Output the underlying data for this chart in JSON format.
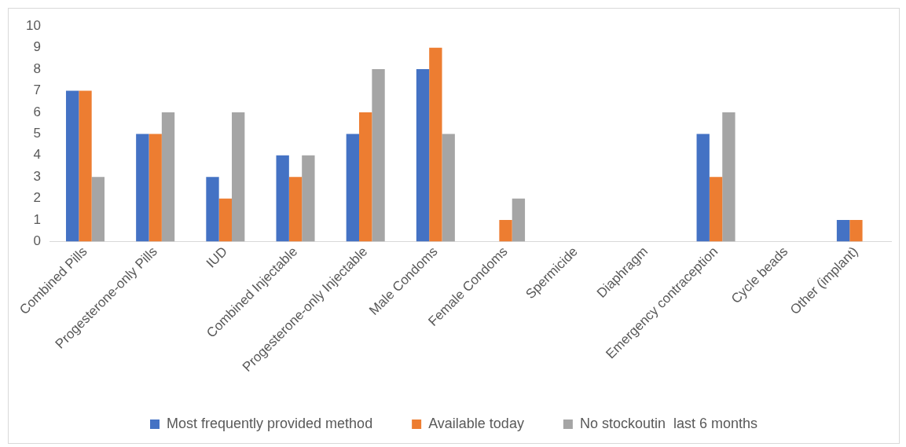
{
  "chart_data": {
    "type": "bar",
    "categories": [
      "Combined Pills",
      "Progesterone-only Pills",
      "IUD",
      "Combined Injectable",
      "Progesterone-only Injectable",
      "Male Condoms",
      "Female Condoms",
      "Spermicide",
      "Diaphragm",
      "Emergency contraception",
      "Cycle beads",
      "Other (implant)"
    ],
    "series": [
      {
        "name": "Most frequently provided method",
        "color": "#4472c4",
        "values": [
          7,
          5,
          3,
          4,
          5,
          8,
          0,
          0,
          0,
          5,
          0,
          1
        ]
      },
      {
        "name": "Available today",
        "color": "#ed7d31",
        "values": [
          7,
          5,
          2,
          3,
          6,
          9,
          1,
          0,
          0,
          3,
          0,
          1
        ]
      },
      {
        "name": "No stockoutin  last 6 months",
        "color": "#a5a5a5",
        "values": [
          3,
          6,
          6,
          4,
          8,
          5,
          2,
          0,
          0,
          6,
          0,
          0
        ]
      }
    ],
    "ylim": [
      0,
      10
    ],
    "yticks": [
      0,
      1,
      2,
      3,
      4,
      5,
      6,
      7,
      8,
      9,
      10
    ],
    "grid": false,
    "legend": "bottom"
  }
}
